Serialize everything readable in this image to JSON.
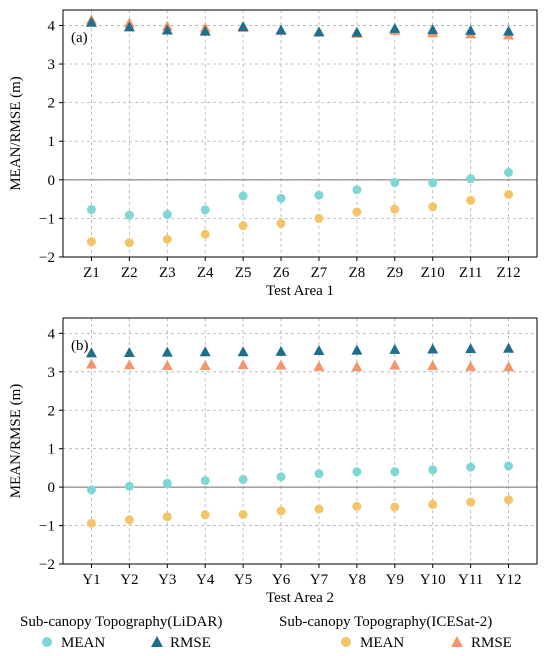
{
  "chart_data": [
    {
      "type": "scatter",
      "panel_label": "(a)",
      "xlabel": "Test Area 1",
      "ylabel": "MEAN/RMSE (m)",
      "categories": [
        "Z1",
        "Z2",
        "Z3",
        "Z4",
        "Z5",
        "Z6",
        "Z7",
        "Z8",
        "Z9",
        "Z10",
        "Z11",
        "Z12"
      ],
      "ylim": [
        -2,
        4.4
      ],
      "yticks": [
        -2,
        -1,
        0,
        1,
        2,
        3,
        4
      ],
      "grid": true,
      "zero_line": true,
      "series": [
        {
          "group": "lidar",
          "marker": "circle",
          "color": "#7fd6d6",
          "values": [
            -0.77,
            -0.92,
            -0.9,
            -0.78,
            -0.42,
            -0.48,
            -0.4,
            -0.26,
            -0.07,
            -0.08,
            0.03,
            0.19
          ]
        },
        {
          "group": "lidar",
          "marker": "triangle",
          "color": "#1f6e8c",
          "values": [
            4.07,
            3.95,
            3.87,
            3.84,
            3.96,
            3.87,
            3.82,
            3.81,
            3.91,
            3.88,
            3.86,
            3.84
          ]
        },
        {
          "group": "icesat2",
          "marker": "circle",
          "color": "#f5c466",
          "values": [
            -1.6,
            -1.63,
            -1.54,
            -1.41,
            -1.19,
            -1.13,
            -1.0,
            -0.83,
            -0.76,
            -0.7,
            -0.53,
            -0.38
          ]
        },
        {
          "group": "icesat2",
          "marker": "triangle",
          "color": "#f4966a",
          "values": [
            4.13,
            4.05,
            3.97,
            3.92,
            3.93,
            3.86,
            3.82,
            3.78,
            3.86,
            3.8,
            3.77,
            3.74
          ]
        }
      ]
    },
    {
      "type": "scatter",
      "panel_label": "(b)",
      "xlabel": "Test Area 2",
      "ylabel": "MEAN/RMSE (m)",
      "categories": [
        "Y1",
        "Y2",
        "Y3",
        "Y4",
        "Y5",
        "Y6",
        "Y7",
        "Y8",
        "Y9",
        "Y10",
        "Y11",
        "Y12"
      ],
      "ylim": [
        -2,
        4.4
      ],
      "yticks": [
        -2,
        -1,
        0,
        1,
        2,
        3,
        4
      ],
      "grid": true,
      "zero_line": true,
      "series": [
        {
          "group": "lidar",
          "marker": "circle",
          "color": "#7fd6d6",
          "values": [
            -0.07,
            0.02,
            0.1,
            0.17,
            0.2,
            0.27,
            0.35,
            0.4,
            0.4,
            0.45,
            0.52,
            0.55
          ]
        },
        {
          "group": "lidar",
          "marker": "triangle",
          "color": "#1f6e8c",
          "values": [
            3.48,
            3.49,
            3.5,
            3.51,
            3.51,
            3.52,
            3.54,
            3.55,
            3.57,
            3.58,
            3.59,
            3.6
          ]
        },
        {
          "group": "icesat2",
          "marker": "circle",
          "color": "#f5c466",
          "values": [
            -0.94,
            -0.85,
            -0.77,
            -0.72,
            -0.71,
            -0.62,
            -0.57,
            -0.5,
            -0.52,
            -0.45,
            -0.39,
            -0.33
          ]
        },
        {
          "group": "icesat2",
          "marker": "triangle",
          "color": "#f4966a",
          "values": [
            3.19,
            3.17,
            3.15,
            3.15,
            3.17,
            3.16,
            3.13,
            3.12,
            3.16,
            3.15,
            3.13,
            3.12
          ]
        }
      ]
    }
  ],
  "legend": {
    "placement": "bottom",
    "groups": [
      {
        "title": "Sub-canopy Topography(LiDAR)",
        "items": [
          {
            "label": "MEAN",
            "marker": "circle",
            "color": "#7fd6d6"
          },
          {
            "label": "RMSE",
            "marker": "triangle",
            "color": "#1f6e8c"
          }
        ]
      },
      {
        "title": "Sub-canopy Topography(ICESat-2)",
        "items": [
          {
            "label": "MEAN",
            "marker": "circle",
            "color": "#f5c466"
          },
          {
            "label": "RMSE",
            "marker": "triangle",
            "color": "#f4966a"
          }
        ]
      }
    ]
  }
}
